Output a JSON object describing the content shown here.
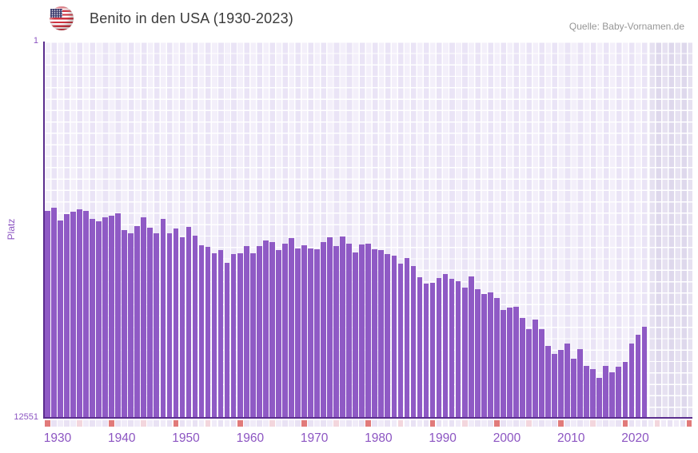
{
  "header": {
    "title": "Benito in den USA (1930-2023)",
    "source": "Quelle: Baby-Vornamen.de",
    "flag_icon": "us-flag-icon"
  },
  "chart_data": {
    "type": "bar",
    "title": "Benito in den USA (1930-2023)",
    "ylabel": "Platz",
    "y_axis_inverted": true,
    "y_top_label": "1",
    "y_bottom_label": "12551",
    "ylim": [
      1,
      12551
    ],
    "grid": true,
    "bar_color": "#8f5ac5",
    "axis_color": "#5b2d8e",
    "tick_color": "#8c55c2",
    "x_tick_labels": [
      "1930",
      "1940",
      "1950",
      "1960",
      "1970",
      "1980",
      "1990",
      "2000",
      "2010",
      "2020"
    ],
    "years": [
      1930,
      1931,
      1932,
      1933,
      1934,
      1935,
      1936,
      1937,
      1938,
      1939,
      1940,
      1941,
      1942,
      1943,
      1944,
      1945,
      1946,
      1947,
      1948,
      1949,
      1950,
      1951,
      1952,
      1953,
      1954,
      1955,
      1956,
      1957,
      1958,
      1959,
      1960,
      1961,
      1962,
      1963,
      1964,
      1965,
      1966,
      1967,
      1968,
      1969,
      1970,
      1971,
      1972,
      1973,
      1974,
      1975,
      1976,
      1977,
      1978,
      1979,
      1980,
      1981,
      1982,
      1983,
      1984,
      1985,
      1986,
      1987,
      1988,
      1989,
      1990,
      1991,
      1992,
      1993,
      1994,
      1995,
      1996,
      1997,
      1998,
      1999,
      2000,
      2001,
      2002,
      2003,
      2004,
      2005,
      2006,
      2007,
      2008,
      2009,
      2010,
      2011,
      2012,
      2013,
      2014,
      2015,
      2016,
      2017,
      2018,
      2019,
      2020,
      2021,
      2022,
      2023
    ],
    "values": [
      5640,
      5550,
      5980,
      5760,
      5670,
      5600,
      5640,
      5910,
      6000,
      5870,
      5800,
      5740,
      6290,
      6390,
      6160,
      5860,
      6200,
      6390,
      5920,
      6400,
      6240,
      6540,
      6170,
      6470,
      6790,
      6860,
      7050,
      6960,
      7380,
      7100,
      7050,
      6830,
      7060,
      6830,
      6630,
      6700,
      6960,
      6740,
      6550,
      6890,
      6790,
      6900,
      6940,
      6700,
      6520,
      6810,
      6500,
      6740,
      7040,
      6770,
      6740,
      6920,
      6960,
      7080,
      7140,
      7410,
      7210,
      7500,
      7850,
      8070,
      8050,
      7900,
      7750,
      7920,
      7990,
      8210,
      7830,
      8250,
      8430,
      8370,
      8550,
      8960,
      8870,
      8850,
      9230,
      9580,
      9270,
      9580,
      10140,
      10430,
      10290,
      10070,
      10590,
      10270,
      10830,
      10920,
      11230,
      10810,
      11030,
      10850,
      10680,
      10070,
      9790,
      9500
    ],
    "timeline_strip": {
      "start_year": 1930,
      "end_year": 2030,
      "decade_marker_color": "#e17a7a",
      "half_decade_marker_color": "#f3d6dd",
      "cell_color_a": "#f0ebf8",
      "cell_color_b": "#e9e2f4"
    }
  }
}
